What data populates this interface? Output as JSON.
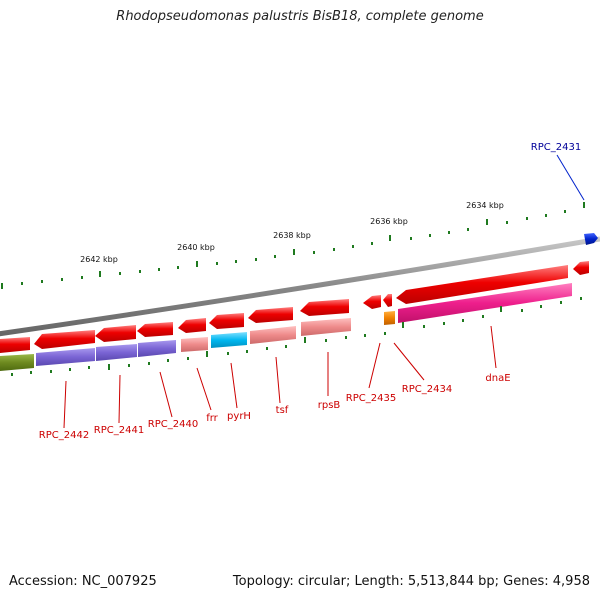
{
  "title": "Rhodopseudomonas palustris BisB18, complete genome",
  "footer": {
    "accession": "Accession: NC_007925",
    "summary": "Topology: circular; Length: 5,513,844 bp; Genes: 4,958"
  },
  "scale_labels": [
    "2642 kbp",
    "2640 kbp",
    "2638 kbp",
    "2636 kbp",
    "2634 kbp"
  ],
  "gene_labels": {
    "rpc2431": "RPC_2431",
    "rpc2442": "RPC_2442",
    "rpc2441": "RPC_2441",
    "rpc2440": "RPC_2440",
    "frr": "frr",
    "pyrH": "pyrH",
    "tsf": "tsf",
    "rpsB": "rpsB",
    "rpc2435": "RPC_2435",
    "rpc2434": "RPC_2434",
    "dnaE": "dnaE"
  },
  "colors": {
    "forward_strand": "#ee0000",
    "cog_red": "#ff4a4a",
    "cog_purple": "#7a64d4",
    "cog_pink": "#ee8a8a",
    "cog_cyan": "#00b8f0",
    "cog_orange": "#f08000",
    "cog_magenta": "#ee1f8c",
    "cog_olive": "#6e8a1f",
    "highlight_blue": "#0022cc",
    "label_red": "#cc0000",
    "label_blue": "#000099",
    "backbone": "#888888",
    "tick_green": "#1f7a1f"
  }
}
